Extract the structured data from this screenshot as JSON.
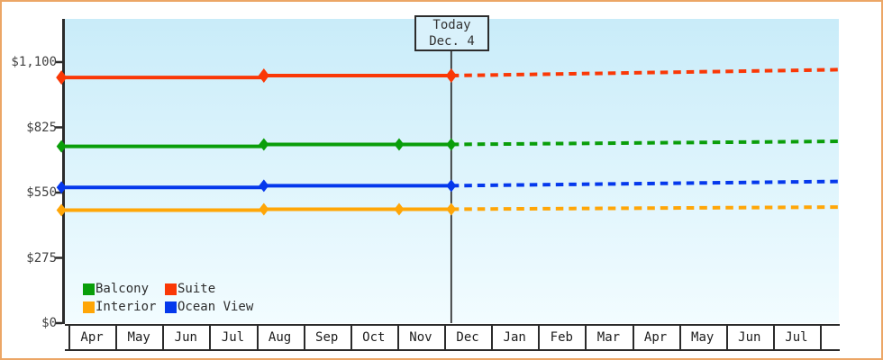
{
  "colors": {
    "frame_border": "#eca666",
    "plot_gradient_top": "#c9ecf9",
    "plot_gradient_bottom": "#f2fcff",
    "axis": "#2b2b2b",
    "today_box_fill": "#d9f1fb"
  },
  "chart_data": {
    "type": "line",
    "title": "",
    "description": "Cabin price history by category with dashed forecast after today",
    "y_axis": {
      "min": 0,
      "max": 1100,
      "grid": false,
      "ticks": [
        {
          "label": "$0",
          "value": 0
        },
        {
          "label": "$275",
          "value": 275
        },
        {
          "label": "$550",
          "value": 550
        },
        {
          "label": "$825",
          "value": 825
        },
        {
          "label": "$1,100",
          "value": 1100
        }
      ]
    },
    "x_axis": {
      "months": [
        "Apr",
        "May",
        "Jun",
        "Jul",
        "Aug",
        "Sep",
        "Oct",
        "Nov",
        "Dec",
        "Jan",
        "Feb",
        "Mar",
        "Apr",
        "May",
        "Jun",
        "Jul"
      ]
    },
    "today_marker": {
      "line1": "Today",
      "line2": "Dec. 4",
      "t": 8.15
    },
    "series": [
      {
        "name": "Balcony",
        "color": "#0a9e0a",
        "points": [
          {
            "date": "Apr",
            "t": -0.15,
            "value": 745
          },
          {
            "date": "Aug 5",
            "t": 4.16,
            "value": 753
          },
          {
            "date": "Nov 1",
            "t": 7.04,
            "value": 753
          },
          {
            "date": "Dec 4",
            "t": 8.15,
            "value": 753
          }
        ],
        "forecast_end": {
          "t": 16.38,
          "value": 766
        }
      },
      {
        "name": "Suite",
        "color": "#fa3806",
        "points": [
          {
            "date": "Apr",
            "t": -0.15,
            "value": 1035
          },
          {
            "date": "Aug 5",
            "t": 4.16,
            "value": 1043
          },
          {
            "date": "Dec 4",
            "t": 8.15,
            "value": 1043
          }
        ],
        "forecast_end": {
          "t": 16.38,
          "value": 1068
        }
      },
      {
        "name": "Interior",
        "color": "#ffa607",
        "points": [
          {
            "date": "Apr",
            "t": -0.15,
            "value": 476
          },
          {
            "date": "Aug 5",
            "t": 4.16,
            "value": 480
          },
          {
            "date": "Nov 1",
            "t": 7.04,
            "value": 480
          },
          {
            "date": "Dec 4",
            "t": 8.15,
            "value": 480
          }
        ],
        "forecast_end": {
          "t": 16.38,
          "value": 489
        }
      },
      {
        "name": "Ocean View",
        "color": "#0538ec",
        "points": [
          {
            "date": "Apr",
            "t": -0.15,
            "value": 572
          },
          {
            "date": "Aug 5",
            "t": 4.16,
            "value": 579
          },
          {
            "date": "Dec 4",
            "t": 8.15,
            "value": 579
          }
        ],
        "forecast_end": {
          "t": 16.38,
          "value": 597
        }
      }
    ],
    "legend": {
      "position": "bottom-left",
      "items": [
        "Balcony",
        "Suite",
        "Interior",
        "Ocean View"
      ]
    }
  }
}
